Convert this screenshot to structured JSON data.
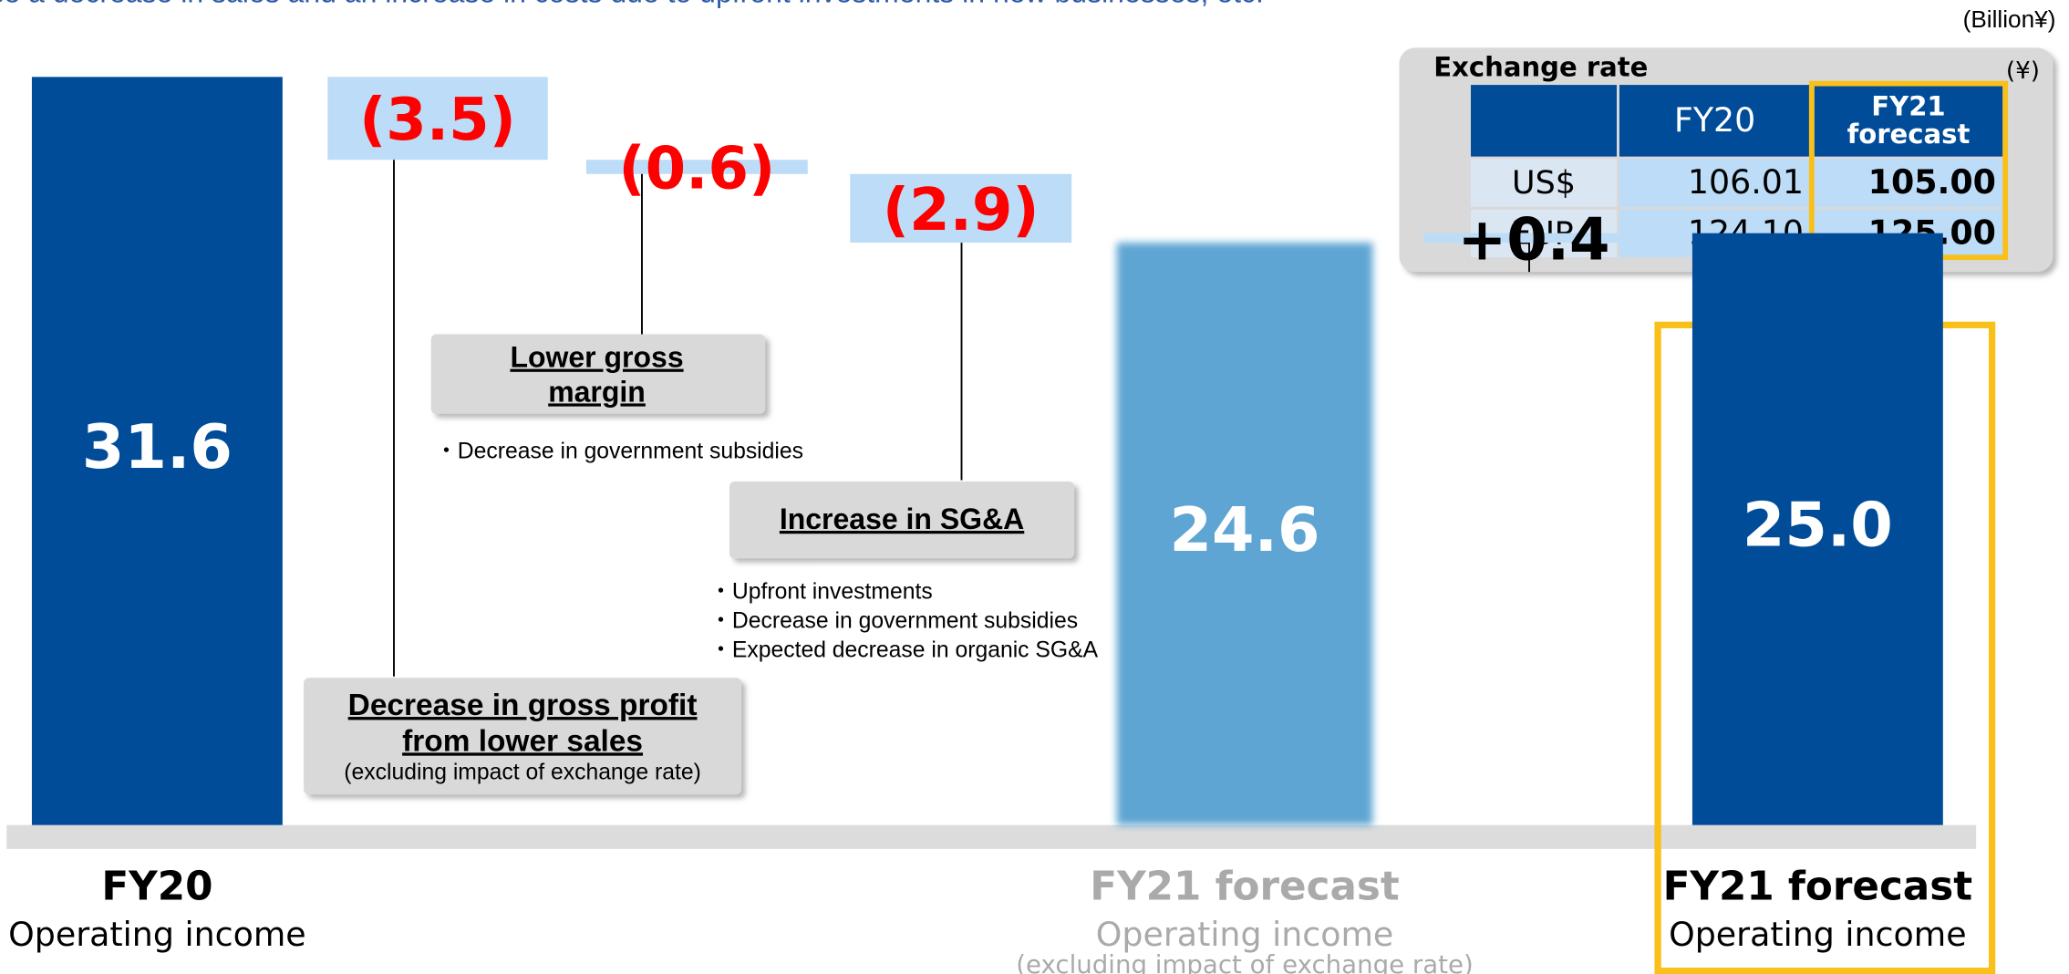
{
  "header": {
    "text": "se a decrease in sales and an increase in costs due to upfront investments in new businesses, etc.",
    "unit": "(Billion¥)"
  },
  "chart_data": {
    "type": "waterfall",
    "categories": [
      "FY20",
      null,
      null,
      null,
      "FY21 forecast",
      null,
      "FY21 forecast"
    ],
    "sublabels": [
      [
        "Operating income"
      ],
      null,
      null,
      null,
      [
        "Operating income",
        "(excluding impact of exchange rate)"
      ],
      null,
      [
        "Operating income"
      ]
    ],
    "kinds": [
      "total",
      "step",
      "step",
      "step",
      "total",
      "step",
      "total"
    ],
    "values": [
      31.6,
      -3.5,
      -0.6,
      -2.9,
      24.6,
      0.4,
      25.0
    ],
    "value_labels": [
      "31.6",
      "(3.5)",
      "(0.6)",
      "(2.9)",
      "24.6",
      "+0.4",
      "25.0"
    ],
    "colors": [
      "#004c99",
      "#bcdcf8",
      "#bcdcf8",
      "#bcdcf8",
      "#5ea5d3",
      "#bcdcf8",
      "#004c99"
    ]
  },
  "annotations": [
    {
      "title": [
        "Decrease in gross profit",
        "from lower sales"
      ],
      "note": "(excluding impact of exchange rate)",
      "bullets": []
    },
    {
      "title": [
        "Lower gross",
        "margin"
      ],
      "bullets": [
        "・Decrease in government subsidies"
      ]
    },
    {
      "title": [
        "Increase in SG&A"
      ],
      "bullets": [
        "・Upfront investments",
        "・Decrease in government subsidies",
        "・Expected decrease in organic SG&A"
      ]
    }
  ],
  "exchange": {
    "title": "Exchange rate",
    "unit": "(¥)",
    "columns": [
      "FY20",
      "FY21 forecast"
    ],
    "rows": [
      [
        "US$",
        "106.01",
        "105.00"
      ],
      [
        "EUR",
        "124.10",
        "125.00"
      ]
    ]
  }
}
